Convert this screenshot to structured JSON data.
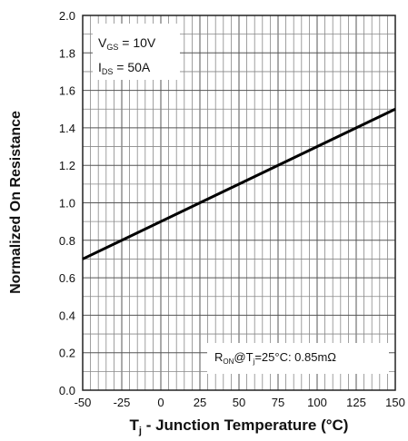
{
  "chart_data": {
    "type": "line",
    "xlabel": {
      "main": "T",
      "sub": "j",
      "rest": " - Junction Temperature (°C)"
    },
    "ylabel": "Normalized On Resistance",
    "xlim": [
      -50,
      150
    ],
    "ylim": [
      0.0,
      2.0
    ],
    "x_ticks": [
      "-50",
      "-25",
      "0",
      "25",
      "50",
      "75",
      "100",
      "125",
      "150"
    ],
    "y_ticks": [
      "0.0",
      "0.2",
      "0.4",
      "0.6",
      "0.8",
      "1.0",
      "1.2",
      "1.4",
      "1.6",
      "1.8",
      "2.0"
    ],
    "grid": true,
    "series": [
      {
        "x": [
          -50,
          150
        ],
        "y": [
          0.7,
          1.5
        ]
      }
    ],
    "conditions": [
      {
        "main": "V",
        "sub": "GS",
        "rest": " = 10V"
      },
      {
        "main": "I",
        "sub": "DS",
        "rest": " = 50A"
      }
    ],
    "annotation": {
      "r": "R",
      "r_sub": "ON",
      "at": "@T",
      "t_sub": "j",
      "rest": "=25°C: 0.85mΩ"
    }
  }
}
